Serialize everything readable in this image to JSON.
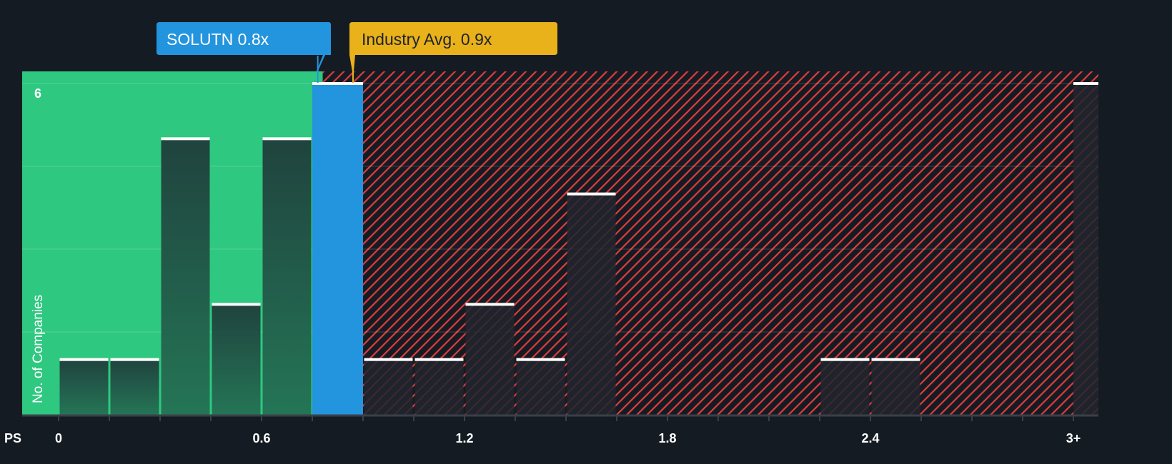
{
  "chart_data": {
    "type": "bar",
    "title": "",
    "xlabel": "PS",
    "ylabel": "No. of Companies",
    "bin_width": 0.15,
    "bins_start": 0,
    "values": [
      1,
      1,
      5,
      2,
      5,
      6,
      1,
      1,
      2,
      1,
      4,
      0,
      0,
      0,
      0,
      1,
      1,
      0,
      0,
      0
    ],
    "overflow_label": "3+",
    "overflow_value": 6,
    "highlight_bin": 5,
    "ylim": [
      0,
      6
    ],
    "y_gridlines": [
      1.5,
      3,
      4.5,
      6
    ],
    "y_tick_labels": [
      {
        "value": 6,
        "label": "6"
      }
    ],
    "x_ticks": [
      {
        "value": 0,
        "label": "0"
      },
      {
        "value": 0.6,
        "label": "0.6"
      },
      {
        "value": 1.2,
        "label": "1.2"
      },
      {
        "value": 1.8,
        "label": "1.8"
      },
      {
        "value": 2.4,
        "label": "2.4"
      },
      {
        "value": 3.0,
        "label": "3+"
      }
    ],
    "company": {
      "label": "SOLUTN 0.8x",
      "value": 0.8
    },
    "industry": {
      "label": "Industry Avg. 0.9x",
      "value": 0.9
    },
    "colors": {
      "background": "#151b23",
      "fair_zone": "#2ec880",
      "overvalued_hatch": "#e03c3c",
      "company": "#2394de",
      "industry": "#e9b11a",
      "bar_dark": "#214a40",
      "bar_cap": "#ffffff"
    }
  }
}
